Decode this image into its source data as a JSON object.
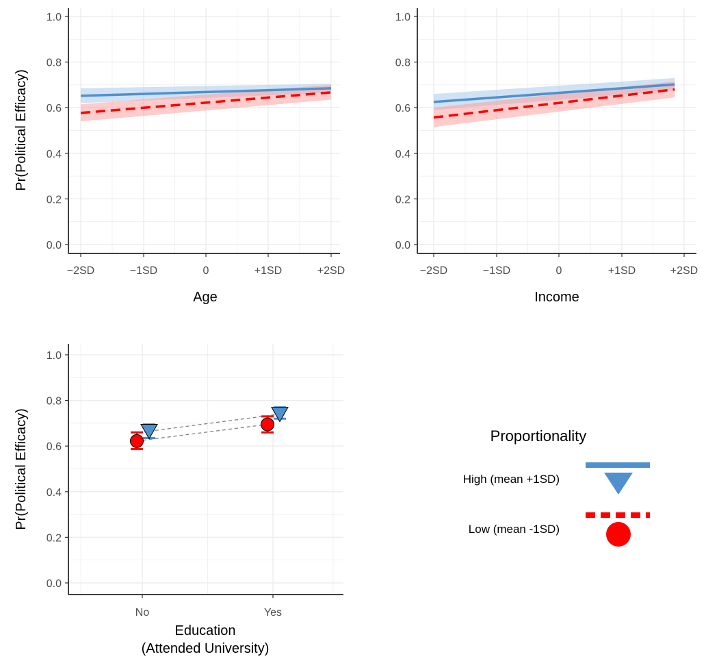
{
  "charts": [
    {
      "id": "age",
      "type": "line",
      "xlabel": "Age",
      "ylabel": "Pr(Political Efficacy)",
      "x_ticks": [
        "−2SD",
        "−1SD",
        "0",
        "+1SD",
        "+2SD"
      ],
      "y_ticks": [
        "0.0",
        "0.2",
        "0.4",
        "0.6",
        "0.8",
        "1.0"
      ],
      "xlim": [
        -2,
        2
      ],
      "ylim": [
        0,
        1
      ],
      "series": [
        {
          "level": "high",
          "x": [
            -2,
            2
          ],
          "y": [
            0.652,
            0.685
          ],
          "lower": [
            0.62,
            0.665
          ],
          "upper": [
            0.685,
            0.705
          ]
        },
        {
          "level": "low",
          "x": [
            -2,
            2
          ],
          "y": [
            0.577,
            0.667
          ],
          "lower": [
            0.54,
            0.635
          ],
          "upper": [
            0.615,
            0.7
          ]
        }
      ]
    },
    {
      "id": "income",
      "type": "line",
      "xlabel": "Income",
      "ylabel": "",
      "x_ticks": [
        "−2SD",
        "−1SD",
        "0",
        "+1SD",
        "+2SD"
      ],
      "y_ticks": [
        "0.0",
        "0.2",
        "0.4",
        "0.6",
        "0.8",
        "1.0"
      ],
      "xlim": [
        -2,
        2
      ],
      "ylim": [
        0,
        1
      ],
      "series": [
        {
          "level": "high",
          "x": [
            -2,
            1.85
          ],
          "y": [
            0.625,
            0.702
          ],
          "lower": [
            0.59,
            0.675
          ],
          "upper": [
            0.66,
            0.73
          ]
        },
        {
          "level": "low",
          "x": [
            -2,
            1.85
          ],
          "y": [
            0.557,
            0.68
          ],
          "lower": [
            0.515,
            0.645
          ],
          "upper": [
            0.6,
            0.715
          ]
        }
      ]
    },
    {
      "id": "education",
      "type": "scatter",
      "xlabel": "Education",
      "xlabel2": "(Attended University)",
      "ylabel": "Pr(Political Efficacy)",
      "categories": [
        "No",
        "Yes"
      ],
      "y_ticks": [
        "0.0",
        "0.2",
        "0.4",
        "0.6",
        "0.8",
        "1.0"
      ],
      "ylim": [
        0,
        1
      ],
      "series": [
        {
          "level": "high",
          "values": [
            0.665,
            0.74
          ],
          "lower": [
            0.635,
            0.72
          ],
          "upper": [
            0.695,
            0.77
          ]
        },
        {
          "level": "low",
          "values": [
            0.622,
            0.695
          ],
          "lower": [
            0.587,
            0.66
          ],
          "upper": [
            0.66,
            0.73
          ]
        }
      ]
    }
  ],
  "legend": {
    "title": "Proportionality",
    "items": [
      {
        "level": "high",
        "label": "High (mean +1SD)",
        "color": "#4f90cd"
      },
      {
        "level": "low",
        "label": "Low (mean -1SD)",
        "color": "#ff0000"
      }
    ]
  },
  "colors": {
    "high": "#4f90cd",
    "high_band": "#a9cbe9",
    "low": "#ff0000",
    "low_band": "#ff9a9a",
    "grid": "#ebebeb",
    "axis": "#000000"
  }
}
